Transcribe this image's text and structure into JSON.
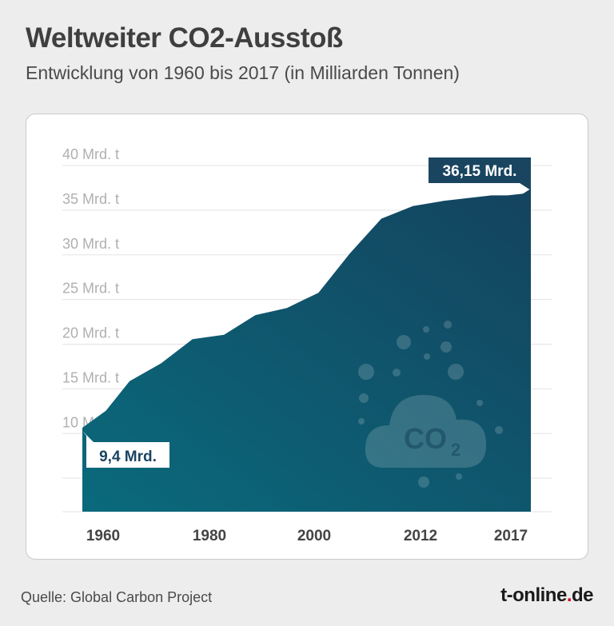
{
  "header": {
    "title": "Weltweiter CO2-Ausstoß",
    "subtitle": "Entwicklung von 1960 bis 2017 (in Milliarden Tonnen)"
  },
  "footer": {
    "source": "Quelle: Global Carbon Project",
    "brand_main": "t-online",
    "brand_dot": ".",
    "brand_tld": "de"
  },
  "colors": {
    "area_dark": "#14435e",
    "area_light": "#0a6a7c",
    "label_bg": "#1a4560",
    "grid": "#e3e3e3",
    "tick_text": "#b0b0b0",
    "accent_red": "#e2001a"
  },
  "chart_data": {
    "type": "area",
    "title": "Weltweiter CO2-Ausstoß",
    "subtitle": "Entwicklung von 1960 bis 2017 (in Milliarden Tonnen)",
    "unit": "Mrd. t",
    "ylim": [
      0,
      40
    ],
    "xlim": [
      1960,
      2017
    ],
    "y_ticks": [
      {
        "value": 10,
        "label": "10 Mrd. t"
      },
      {
        "value": 15,
        "label": "15 Mrd. t"
      },
      {
        "value": 20,
        "label": "20 Mrd. t"
      },
      {
        "value": 25,
        "label": "25 Mrd. t"
      },
      {
        "value": 30,
        "label": "30 Mrd. t"
      },
      {
        "value": 35,
        "label": "35 Mrd. t"
      },
      {
        "value": 40,
        "label": "40 Mrd. t"
      }
    ],
    "x_ticks": [
      {
        "value": 1960,
        "label": "1960"
      },
      {
        "value": 1980,
        "label": "1980"
      },
      {
        "value": 2000,
        "label": "2000"
      },
      {
        "value": 2012,
        "label": "2012"
      },
      {
        "value": 2017,
        "label": "2017"
      }
    ],
    "series": [
      {
        "x": [
          1960,
          1963,
          1966,
          1970,
          1974,
          1978,
          1982,
          1986,
          1990,
          1994,
          1998,
          2002,
          2006,
          2008,
          2010,
          2012,
          2014,
          2016,
          2017
        ],
        "y": [
          9.4,
          11.3,
          14.6,
          16.6,
          19.3,
          19.8,
          22.0,
          22.8,
          24.5,
          28.9,
          32.8,
          34.2,
          34.8,
          35.0,
          35.2,
          35.4,
          35.4,
          35.6,
          36.15
        ]
      }
    ],
    "annotations": [
      {
        "label": "9,4 Mrd.",
        "x": 1960,
        "y": 9.4
      },
      {
        "label": "36,15 Mrd.",
        "x": 2017,
        "y": 36.15
      }
    ],
    "decoration": {
      "icon": "co2-cloud-icon",
      "text": "CO",
      "subscript": "2"
    },
    "grid": true,
    "legend": "none"
  }
}
